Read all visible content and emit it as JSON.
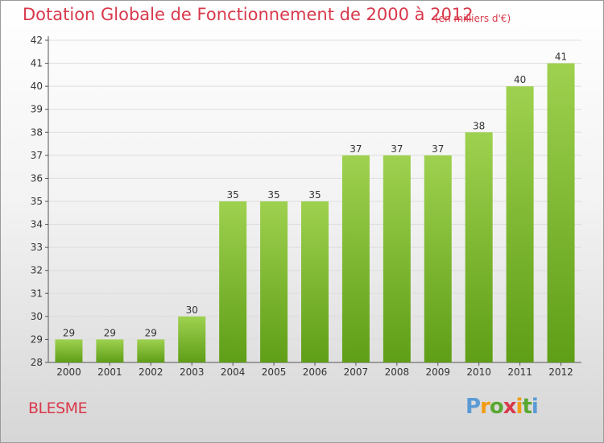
{
  "chart_data": {
    "type": "bar",
    "title": "Dotation Globale de Fonctionnement de 2000 à 2012",
    "subtitle": "(en milliers d'€)",
    "categories": [
      "2000",
      "2001",
      "2002",
      "2003",
      "2004",
      "2005",
      "2006",
      "2007",
      "2008",
      "2009",
      "2010",
      "2011",
      "2012"
    ],
    "values": [
      29,
      29,
      29,
      30,
      35,
      35,
      35,
      37,
      37,
      37,
      38,
      40,
      41
    ],
    "ylim": [
      28,
      42
    ],
    "yticks": [
      28,
      29,
      30,
      31,
      32,
      33,
      34,
      35,
      36,
      37,
      38,
      39,
      40,
      41,
      42
    ],
    "grid": true,
    "bar_color": "#7fbf2e"
  },
  "footer": {
    "place": "BLESME",
    "logo_letters": [
      "P",
      "r",
      "o",
      "x",
      "i",
      "t",
      "i"
    ],
    "logo_colors": [
      "#5b9bd5",
      "#f39c12",
      "#5aa832",
      "#d8394c",
      "#f39c12",
      "#5aa832",
      "#5b9bd5"
    ]
  }
}
